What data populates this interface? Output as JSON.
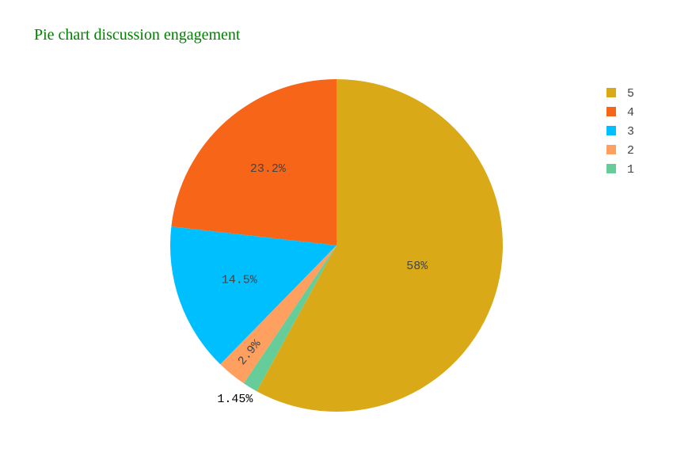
{
  "chart_data": {
    "type": "pie",
    "title": "Pie chart discussion engagement",
    "categories": [
      "5",
      "4",
      "3",
      "2",
      "1"
    ],
    "values": [
      58,
      23.2,
      14.5,
      2.9,
      1.45
    ],
    "value_labels": [
      "58%",
      "23.2%",
      "14.5%",
      "2.9%",
      "1.45%"
    ],
    "colors": [
      "#daa918",
      "#f76518",
      "#00bfff",
      "#ffa060",
      "#66cc99"
    ],
    "legend": "top-right"
  }
}
